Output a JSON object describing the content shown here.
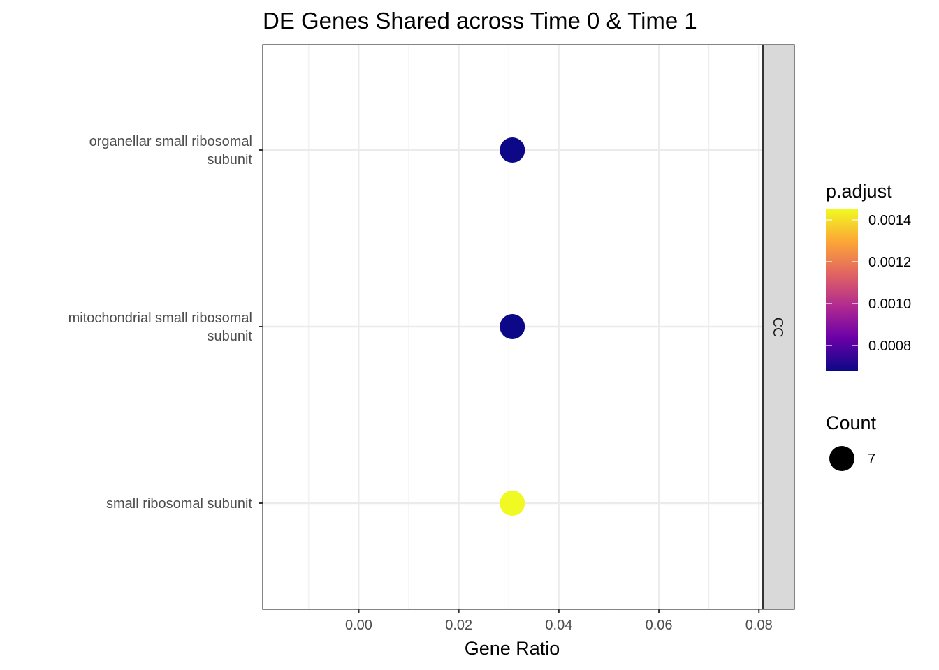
{
  "chart_data": {
    "type": "scatter",
    "title": "DE Genes Shared across Time 0 & Time 1",
    "xlabel": "Gene Ratio",
    "ylabel": "",
    "xlim": [
      -0.0192,
      0.0808
    ],
    "x_ticks": [
      0.0,
      0.02,
      0.04,
      0.06,
      0.08
    ],
    "x_tick_labels": [
      "0.00",
      "0.02",
      "0.04",
      "0.06",
      "0.08"
    ],
    "categories": [
      [
        "organellar small ribosomal",
        "subunit"
      ],
      [
        "mitochondrial small ribosomal",
        "subunit"
      ],
      [
        "small ribosomal subunit"
      ]
    ],
    "points": [
      {
        "term": "organellar small ribosomal subunit",
        "gene_ratio": 0.0307,
        "count": 7,
        "p_adjust": 0.00068,
        "color": "#0d0887"
      },
      {
        "term": "mitochondrial small ribosomal subunit",
        "gene_ratio": 0.0307,
        "count": 7,
        "p_adjust": 0.00068,
        "color": "#0d0887"
      },
      {
        "term": "small ribosomal subunit",
        "gene_ratio": 0.0307,
        "count": 7,
        "p_adjust": 0.00143,
        "color": "#f0f921"
      }
    ],
    "facet_label": "CC",
    "grid": true,
    "legend": {
      "placement": "right",
      "color_title": "p.adjust",
      "color_range": [
        0.00068,
        0.00145
      ],
      "color_ticks": [
        0.0008,
        0.001,
        0.0012,
        0.0014
      ],
      "color_tick_labels": [
        "0.0008",
        "0.0010",
        "0.0012",
        "0.0014"
      ],
      "color_scale": [
        "#0d0887",
        "#6a00a8",
        "#b12a90",
        "#e16462",
        "#fca636",
        "#f0f921"
      ],
      "size_title": "Count",
      "size_values": [
        "7"
      ]
    }
  }
}
